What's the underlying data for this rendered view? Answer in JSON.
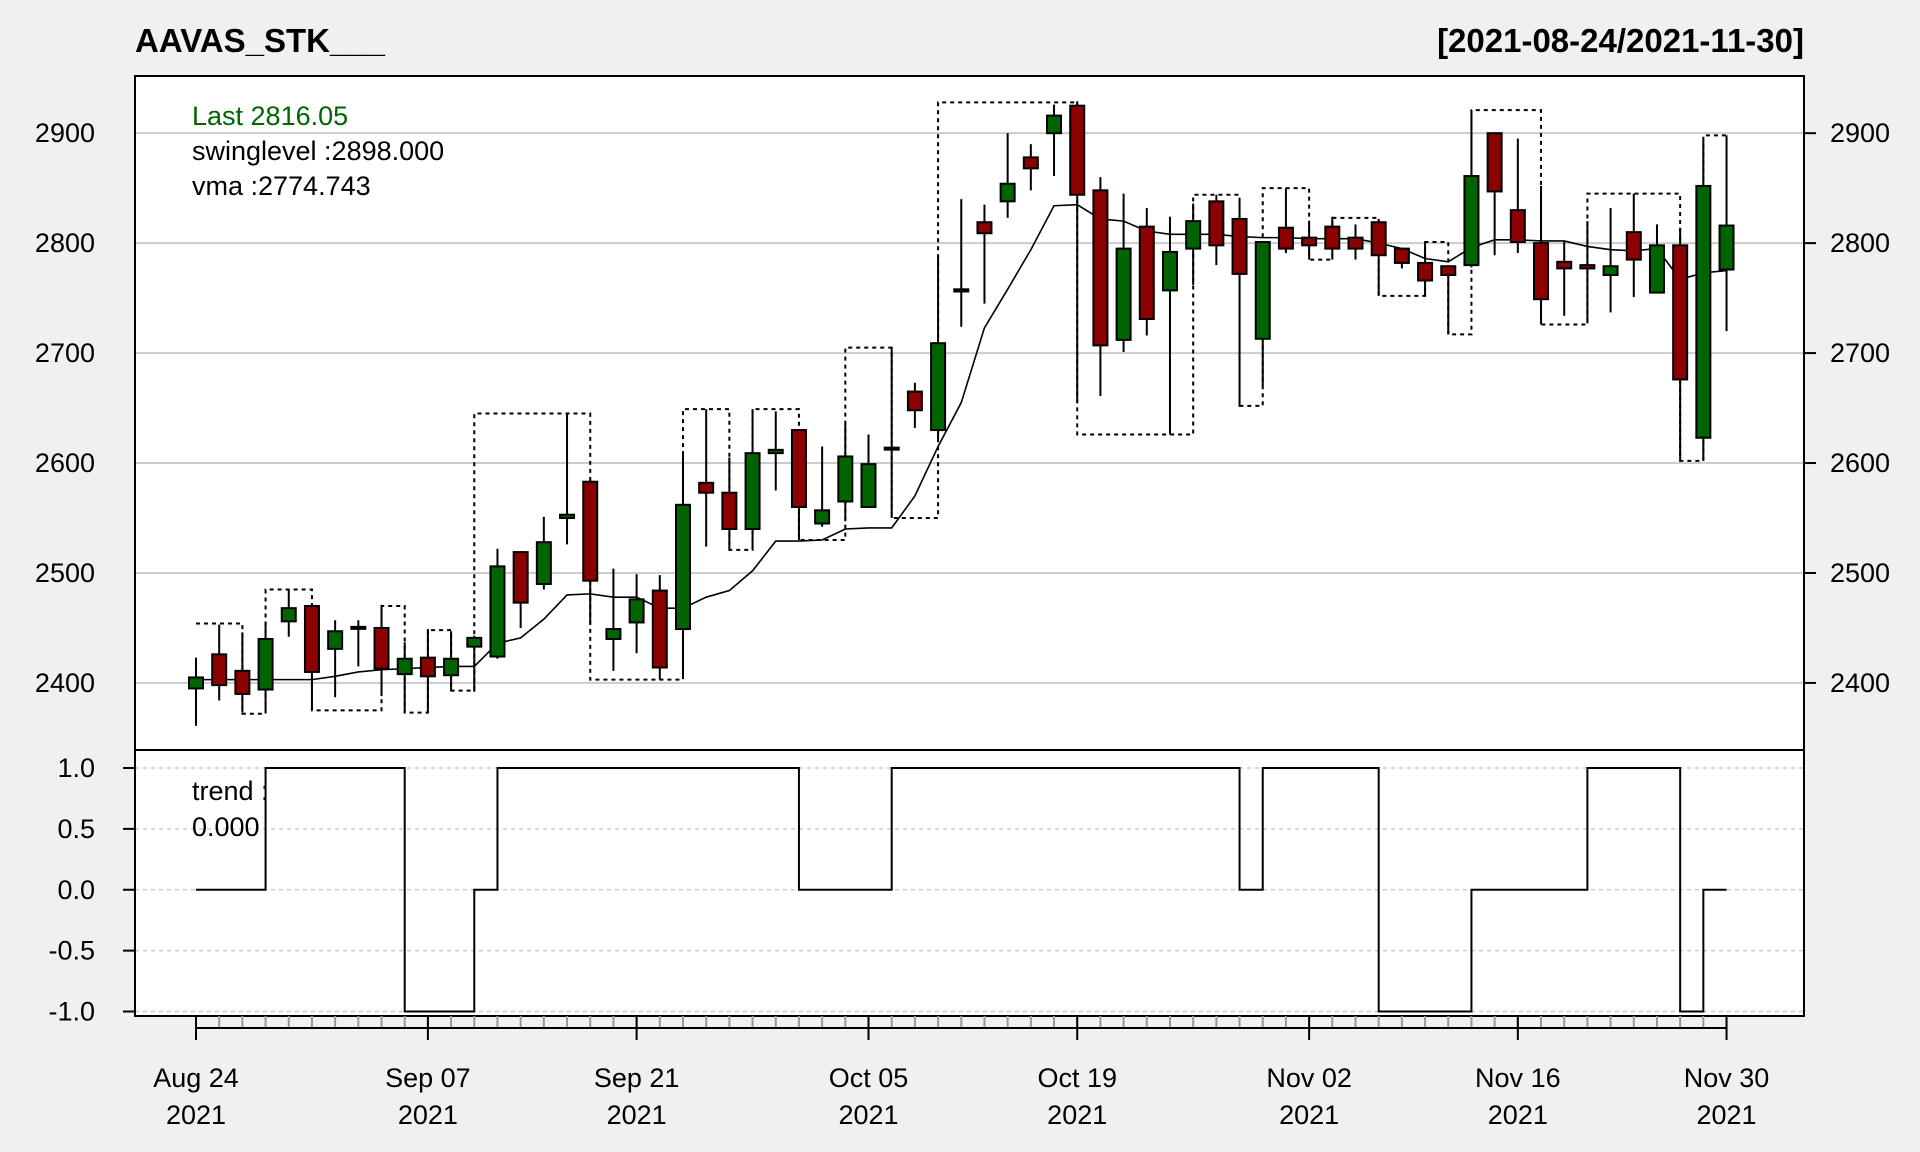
{
  "chart_data": {
    "type": "candlestick",
    "title": "AAVAS_STK___",
    "date_range_label": "[2021-08-24/2021-11-30]",
    "colors": {
      "up": "#006400",
      "down": "#8b0000",
      "legend_last": "#006400"
    },
    "legend": {
      "last": "Last 2816.05",
      "swinglevel": "swinglevel :2898.000",
      "vma": "vma :2774.743",
      "trend_label": "trend :",
      "trend_value": "0.000"
    },
    "price_panel": {
      "ylim": [
        2339,
        2952
      ],
      "yticks": [
        2400,
        2500,
        2600,
        2700,
        2800,
        2900
      ],
      "grid": true
    },
    "trend_panel": {
      "ylim": [
        -1.0,
        1.0
      ],
      "yticks": [
        "1.0",
        "0.5",
        "0.0",
        "-0.5",
        "-1.0"
      ],
      "grid": "dashed"
    },
    "x_labels": [
      {
        "index": 0,
        "line1": "Aug 24",
        "line2": "2021"
      },
      {
        "index": 10,
        "line1": "Sep 07",
        "line2": "2021"
      },
      {
        "index": 19,
        "line1": "Sep 21",
        "line2": "2021"
      },
      {
        "index": 29,
        "line1": "Oct 05",
        "line2": "2021"
      },
      {
        "index": 38,
        "line1": "Oct 19",
        "line2": "2021"
      },
      {
        "index": 48,
        "line1": "Nov 02",
        "line2": "2021"
      },
      {
        "index": 57,
        "line1": "Nov 16",
        "line2": "2021"
      },
      {
        "index": 66,
        "line1": "Nov 30",
        "line2": "2021"
      }
    ],
    "ohlc": [
      [
        2395,
        2423,
        2361,
        2405
      ],
      [
        2426,
        2453,
        2384,
        2398
      ],
      [
        2411,
        2446,
        2373,
        2390
      ],
      [
        2394,
        2455,
        2375,
        2440
      ],
      [
        2456,
        2485,
        2442,
        2468
      ],
      [
        2470,
        2471,
        2376,
        2410
      ],
      [
        2431,
        2457,
        2387,
        2447
      ],
      [
        2450,
        2457,
        2415,
        2451
      ],
      [
        2450,
        2471,
        2388,
        2413
      ],
      [
        2408,
        2437,
        2373,
        2422
      ],
      [
        2423,
        2449,
        2374,
        2406
      ],
      [
        2407,
        2447,
        2393,
        2422
      ],
      [
        2433,
        2443,
        2392,
        2441
      ],
      [
        2424,
        2522,
        2422,
        2506
      ],
      [
        2519,
        2520,
        2450,
        2473
      ],
      [
        2490,
        2551,
        2485,
        2528
      ],
      [
        2550,
        2644,
        2526,
        2553
      ],
      [
        2583,
        2585,
        2453,
        2493
      ],
      [
        2440,
        2504,
        2411,
        2449
      ],
      [
        2455,
        2499,
        2427,
        2476
      ],
      [
        2484,
        2498,
        2403,
        2414
      ],
      [
        2449,
        2609,
        2405,
        2562
      ],
      [
        2582,
        2649,
        2524,
        2573
      ],
      [
        2573,
        2605,
        2521,
        2540
      ],
      [
        2540,
        2649,
        2521,
        2609
      ],
      [
        2609,
        2647,
        2575,
        2612
      ],
      [
        2630,
        2631,
        2530,
        2560
      ],
      [
        2545,
        2615,
        2542,
        2557
      ],
      [
        2565,
        2636,
        2547,
        2606
      ],
      [
        2560,
        2626,
        2559,
        2599
      ],
      [
        2613,
        2705,
        2550,
        2614
      ],
      [
        2665,
        2673,
        2632,
        2648
      ],
      [
        2630,
        2788,
        2622,
        2709
      ],
      [
        2758,
        2840,
        2724,
        2756
      ],
      [
        2819,
        2835,
        2745,
        2809
      ],
      [
        2838,
        2900,
        2823,
        2854
      ],
      [
        2878,
        2890,
        2848,
        2868
      ],
      [
        2900,
        2926,
        2861,
        2916
      ],
      [
        2925,
        2929,
        2655,
        2844
      ],
      [
        2848,
        2860,
        2661,
        2707
      ],
      [
        2712,
        2845,
        2701,
        2795
      ],
      [
        2815,
        2832,
        2716,
        2731
      ],
      [
        2757,
        2824,
        2626,
        2792
      ],
      [
        2795,
        2836,
        2762,
        2820
      ],
      [
        2838,
        2844,
        2780,
        2798
      ],
      [
        2822,
        2838,
        2652,
        2772
      ],
      [
        2713,
        2801,
        2670,
        2801
      ],
      [
        2814,
        2850,
        2791,
        2795
      ],
      [
        2805,
        2818,
        2785,
        2798
      ],
      [
        2815,
        2824,
        2785,
        2795
      ],
      [
        2805,
        2817,
        2785,
        2795
      ],
      [
        2819,
        2822,
        2752,
        2789
      ],
      [
        2795,
        2796,
        2777,
        2782
      ],
      [
        2782,
        2801,
        2752,
        2766
      ],
      [
        2779,
        2780,
        2717,
        2771
      ],
      [
        2780,
        2921,
        2778,
        2861
      ],
      [
        2900,
        2901,
        2789,
        2847
      ],
      [
        2830,
        2895,
        2791,
        2801
      ],
      [
        2800,
        2852,
        2726,
        2749
      ],
      [
        2783,
        2802,
        2734,
        2777
      ],
      [
        2780,
        2820,
        2727,
        2777
      ],
      [
        2771,
        2832,
        2737,
        2779
      ],
      [
        2810,
        2845,
        2751,
        2785
      ],
      [
        2755,
        2817,
        2755,
        2798
      ],
      [
        2798,
        2814,
        2602,
        2676
      ],
      [
        2623,
        2894,
        2602,
        2852
      ],
      [
        2776,
        2898,
        2720,
        2816
      ]
    ],
    "vma": [
      2403,
      2403,
      2403,
      2403,
      2403,
      2403,
      2406,
      2410,
      2412,
      2413,
      2414,
      2415,
      2415,
      2436,
      2441,
      2458,
      2480,
      2481,
      2478,
      2478,
      2468,
      2468,
      2478,
      2484,
      2502,
      2529,
      2529,
      2530,
      2540,
      2541,
      2541,
      2570,
      2615,
      2655,
      2723,
      2758,
      2794,
      2834,
      2835,
      2822,
      2820,
      2811,
      2808,
      2808,
      2808,
      2806,
      2805,
      2805,
      2804,
      2804,
      2804,
      2800,
      2795,
      2786,
      2783,
      2796,
      2803,
      2803,
      2802,
      2802,
      2797,
      2794,
      2793,
      2795,
      2767,
      2773,
      2775
    ],
    "swinglevel_segments": [
      [
        0,
        2,
        2454
      ],
      [
        2,
        3,
        2372
      ],
      [
        3,
        5,
        2485
      ],
      [
        5,
        8,
        2375
      ],
      [
        8,
        9,
        2470
      ],
      [
        9,
        10,
        2373
      ],
      [
        10,
        11,
        2448
      ],
      [
        11,
        12,
        2393
      ],
      [
        12,
        17,
        2645
      ],
      [
        17,
        21,
        2403
      ],
      [
        21,
        23,
        2649
      ],
      [
        23,
        24,
        2521
      ],
      [
        24,
        26,
        2649
      ],
      [
        26,
        28,
        2530
      ],
      [
        28,
        30,
        2705
      ],
      [
        30,
        32,
        2550
      ],
      [
        32,
        38,
        2928
      ],
      [
        38,
        43,
        2626
      ],
      [
        43,
        45,
        2844
      ],
      [
        45,
        46,
        2652
      ],
      [
        46,
        48,
        2850
      ],
      [
        48,
        49,
        2785
      ],
      [
        49,
        51,
        2823
      ],
      [
        51,
        53,
        2752
      ],
      [
        53,
        54,
        2801
      ],
      [
        54,
        55,
        2717
      ],
      [
        55,
        58,
        2921
      ],
      [
        58,
        60,
        2726
      ],
      [
        60,
        64,
        2845
      ],
      [
        64,
        65,
        2602
      ],
      [
        65,
        66,
        2898
      ]
    ],
    "trend": [
      0,
      0,
      0,
      1,
      1,
      1,
      1,
      1,
      1,
      -1,
      -1,
      -1,
      0,
      1,
      1,
      1,
      1,
      1,
      1,
      1,
      1,
      1,
      1,
      1,
      1,
      1,
      0,
      0,
      0,
      0,
      1,
      1,
      1,
      1,
      1,
      1,
      1,
      1,
      1,
      1,
      1,
      1,
      1,
      1,
      1,
      0,
      1,
      1,
      1,
      1,
      1,
      -1,
      -1,
      -1,
      -1,
      0,
      0,
      0,
      0,
      0,
      1,
      1,
      1,
      1,
      -1,
      0,
      0
    ]
  }
}
